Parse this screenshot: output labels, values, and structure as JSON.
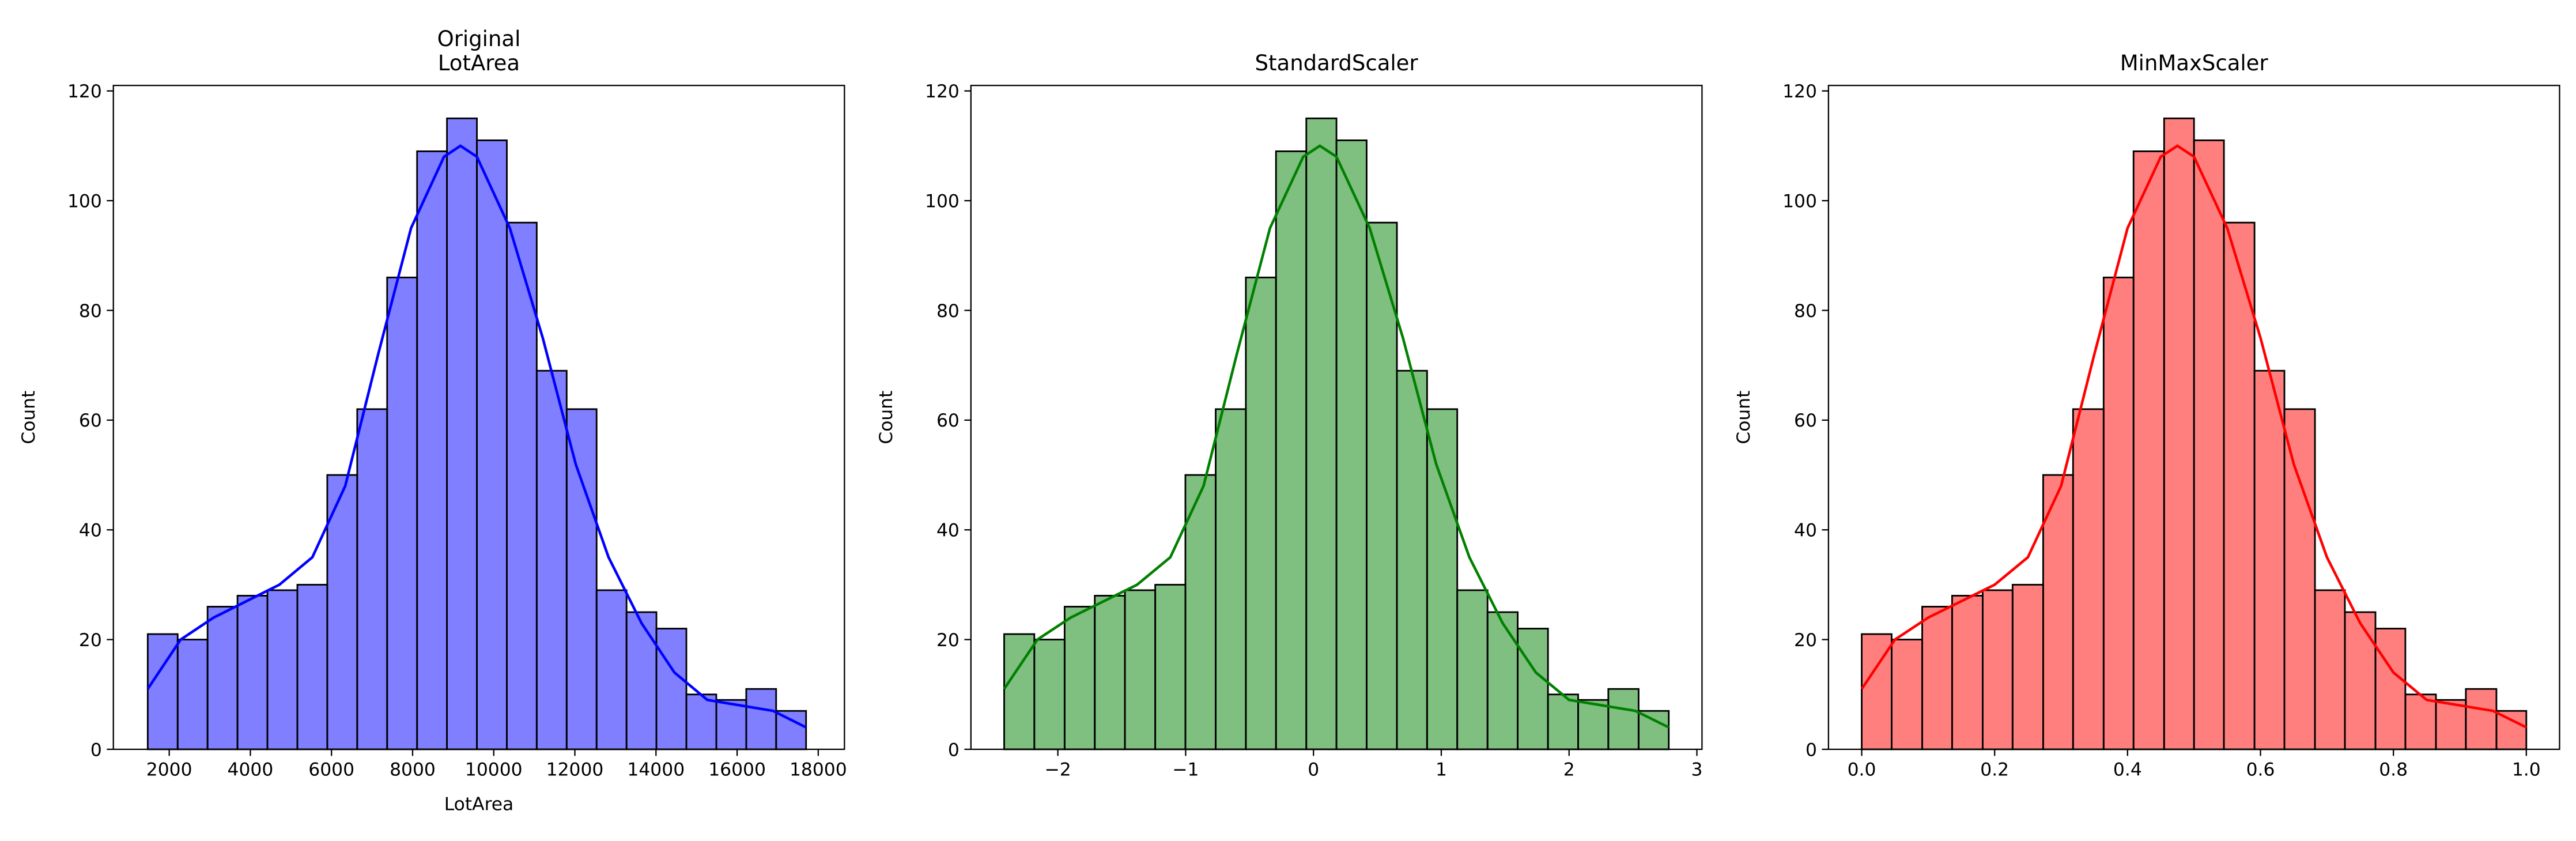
{
  "chart_data": [
    {
      "type": "histogram",
      "title": "Original\nLotArea",
      "xlabel": "LotArea",
      "ylabel": "Count",
      "color": "#0000ff",
      "bins": [
        1470,
        2208,
        2945,
        3683,
        4421,
        5159,
        5896,
        6634,
        7372,
        8110,
        8847,
        9585,
        10323,
        11060,
        11798,
        12536,
        13274,
        14011,
        14749,
        15487,
        16225,
        16962,
        17700
      ],
      "counts": [
        21,
        20,
        26,
        28,
        29,
        30,
        50,
        62,
        86,
        109,
        115,
        111,
        96,
        69,
        62,
        29,
        25,
        22,
        10,
        9,
        11,
        7
      ],
      "kde": {
        "x": [
          1470,
          2282,
          3093,
          3905,
          4716,
          5528,
          6339,
          7151,
          7962,
          8774,
          9179,
          9585,
          10397,
          11208,
          12020,
          12831,
          13643,
          14454,
          15266,
          16077,
          16889,
          17700
        ],
        "y": [
          11,
          20,
          24,
          27,
          30,
          35,
          48,
          72,
          95,
          108,
          110,
          108,
          95,
          75,
          52,
          35,
          23,
          14,
          9,
          8,
          7,
          4
        ]
      },
      "xlim": [
        623,
        18646
      ],
      "xticks": [
        2000,
        4000,
        6000,
        8000,
        10000,
        12000,
        14000,
        16000,
        18000
      ],
      "ylim": [
        0,
        121
      ],
      "yticks": [
        0,
        20,
        40,
        60,
        80,
        100,
        120
      ]
    },
    {
      "type": "histogram",
      "title": "StandardScaler",
      "ylabel": "Count",
      "color": "#008000",
      "bins": [
        -2.42,
        -2.184,
        -1.947,
        -1.711,
        -1.475,
        -1.238,
        -1.002,
        -0.765,
        -0.529,
        -0.293,
        -0.056,
        0.18,
        0.416,
        0.653,
        0.889,
        1.125,
        1.362,
        1.598,
        1.835,
        2.071,
        2.307,
        2.544,
        2.78
      ],
      "counts": [
        21,
        20,
        26,
        28,
        29,
        30,
        50,
        62,
        86,
        109,
        115,
        111,
        96,
        69,
        62,
        29,
        25,
        22,
        10,
        9,
        11,
        7
      ],
      "kde": {
        "x": [
          -2.42,
          -2.16,
          -1.9,
          -1.64,
          -1.38,
          -1.12,
          -0.86,
          -0.6,
          -0.34,
          -0.08,
          0.05,
          0.18,
          0.44,
          0.7,
          0.96,
          1.22,
          1.48,
          1.74,
          2.0,
          2.26,
          2.52,
          2.78
        ],
        "y": [
          11,
          20,
          24,
          27,
          30,
          35,
          48,
          72,
          95,
          108,
          110,
          108,
          95,
          75,
          52,
          35,
          23,
          14,
          9,
          8,
          7,
          4
        ]
      },
      "xlim": [
        -2.68,
        3.04
      ],
      "xticks": [
        {
          "value": -2,
          "label": "−2"
        },
        {
          "value": -1,
          "label": "−1"
        },
        0,
        1,
        2,
        3
      ],
      "ylim": [
        0,
        121
      ],
      "yticks": [
        0,
        20,
        40,
        60,
        80,
        100,
        120
      ]
    },
    {
      "type": "histogram",
      "title": "MinMaxScaler",
      "ylabel": "Count",
      "color": "#ff0000",
      "bins": [
        0,
        0.045,
        0.091,
        0.136,
        0.182,
        0.227,
        0.273,
        0.318,
        0.364,
        0.409,
        0.455,
        0.5,
        0.545,
        0.591,
        0.636,
        0.682,
        0.727,
        0.773,
        0.818,
        0.864,
        0.909,
        0.955,
        1
      ],
      "counts": [
        21,
        20,
        26,
        28,
        29,
        30,
        50,
        62,
        86,
        109,
        115,
        111,
        96,
        69,
        62,
        29,
        25,
        22,
        10,
        9,
        11,
        7
      ],
      "kde": {
        "x": [
          0,
          0.05,
          0.1,
          0.15,
          0.2,
          0.25,
          0.3,
          0.35,
          0.4,
          0.45,
          0.475,
          0.5,
          0.55,
          0.6,
          0.65,
          0.7,
          0.75,
          0.8,
          0.85,
          0.9,
          0.95,
          1
        ],
        "y": [
          11,
          20,
          24,
          27,
          30,
          35,
          48,
          72,
          95,
          108,
          110,
          108,
          95,
          75,
          52,
          35,
          23,
          14,
          9,
          8,
          7,
          4
        ]
      },
      "xlim": [
        -0.05,
        1.05
      ],
      "xticks": [
        {
          "value": 0,
          "label": "0.0"
        },
        0.2,
        0.4,
        0.6,
        0.8,
        {
          "value": 1,
          "label": "1.0"
        }
      ],
      "ylim": [
        0,
        121
      ],
      "yticks": [
        0,
        20,
        40,
        60,
        80,
        100,
        120
      ]
    }
  ]
}
